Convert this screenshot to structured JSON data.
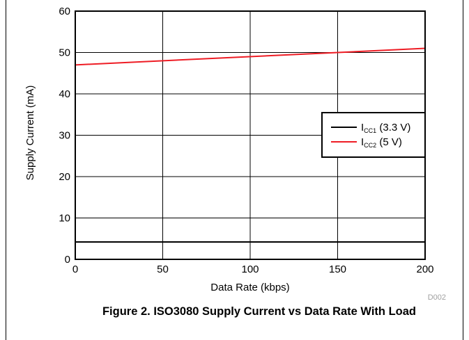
{
  "chart_data": {
    "type": "line",
    "title": "",
    "xlabel": "Data Rate (kbps)",
    "ylabel": "Supply Current (mA)",
    "xlim": [
      0,
      200
    ],
    "ylim": [
      0,
      60
    ],
    "x_ticks": [
      0,
      50,
      100,
      150,
      200
    ],
    "y_ticks": [
      0,
      10,
      20,
      30,
      40,
      50,
      60
    ],
    "grid": true,
    "legend_position": "right, upper-middle",
    "series": [
      {
        "name": "ICC1 (3.3 V)",
        "legend_main": "I",
        "legend_sub": "CC1",
        "legend_rest": " (3.3 V)",
        "color": "#000000",
        "x": [
          0,
          200
        ],
        "y": [
          4.2,
          4.2
        ]
      },
      {
        "name": "ICC2 (5 V)",
        "legend_main": "I",
        "legend_sub": "CC2",
        "legend_rest": " (5 V)",
        "color": "#ee1c24",
        "x": [
          0,
          200
        ],
        "y": [
          47,
          51
        ]
      }
    ],
    "figure_code": "D002",
    "caption": "Figure 2. ISO3080 Supply Current vs Data Rate With Load"
  }
}
